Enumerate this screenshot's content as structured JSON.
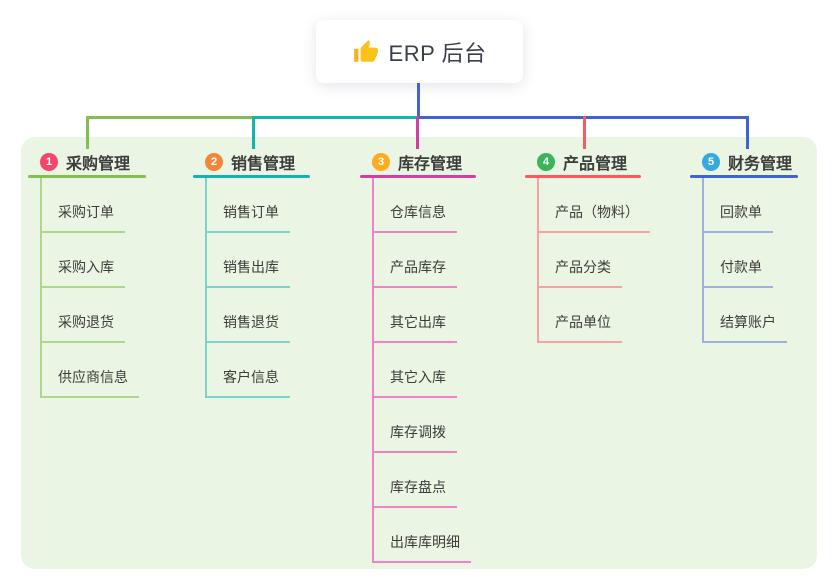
{
  "root": {
    "title": "ERP 后台",
    "icon": "thumbs-up"
  },
  "colors": {
    "panel_bg": "#EAF6E3",
    "root_drop": "#4763D1",
    "bus": [
      "#85BE50",
      "#16B2AB",
      "#3F63D0"
    ]
  },
  "branches": [
    {
      "badge": "1",
      "title": "采购管理",
      "badge_color": "#F4466B",
      "line_color": "#85BE50",
      "child_line_color": "#ABD88E",
      "children": [
        "采购订单",
        "采购入库",
        "采购退货",
        "供应商信息"
      ]
    },
    {
      "badge": "2",
      "title": "销售管理",
      "badge_color": "#F2873B",
      "line_color": "#16B2AB",
      "child_line_color": "#7FD2CC",
      "children": [
        "销售订单",
        "销售出库",
        "销售退货",
        "客户信息"
      ]
    },
    {
      "badge": "3",
      "title": "库存管理",
      "badge_color": "#FCAC1C",
      "line_color": "#D03FA2",
      "child_line_color": "#EF83C6",
      "children": [
        "仓库信息",
        "产品库存",
        "其它出库",
        "其它入库",
        "库存调拨",
        "库存盘点",
        "出库库明细"
      ]
    },
    {
      "badge": "4",
      "title": "产品管理",
      "badge_color": "#3CB45C",
      "line_color": "#F85A60",
      "child_line_color": "#FCA0A3",
      "children": [
        "产品（物料）",
        "产品分类",
        "产品单位"
      ]
    },
    {
      "badge": "5",
      "title": "财务管理",
      "badge_color": "#36A9E1",
      "line_color": "#3F63D0",
      "child_line_color": "#9DB0DE",
      "children": [
        "回款单",
        "付款单",
        "结算账户"
      ]
    }
  ]
}
